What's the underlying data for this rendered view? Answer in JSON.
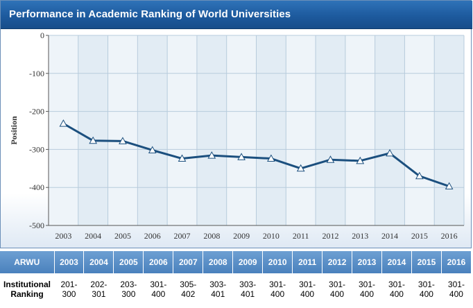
{
  "title": "Performance in Academic Ranking of World Universities",
  "colors": {
    "title_bar": "#1d5a9e",
    "line": "#1b4f7e",
    "marker_fill": "#ffffff",
    "table_header": "#5a8fc8",
    "plot_band_light": "#eef4f9",
    "plot_band_dark": "#e2ecf4"
  },
  "chart_data": {
    "type": "line",
    "title": "Performance in Academic Ranking of World Universities",
    "xlabel": "",
    "ylabel": "Position",
    "x": [
      "2003",
      "2004",
      "2005",
      "2006",
      "2007",
      "2008",
      "2009",
      "2010",
      "2011",
      "2012",
      "2013",
      "2014",
      "2015",
      "2016"
    ],
    "series": [
      {
        "values": [
          -232,
          -277,
          -278,
          -302,
          -324,
          -316,
          -320,
          -324,
          -350,
          -327,
          -330,
          -310,
          -370,
          -397
        ]
      }
    ],
    "ylim": [
      -500,
      0
    ],
    "yticks": [
      0,
      -100,
      -200,
      -300,
      -400,
      -500
    ],
    "ytick_labels": [
      "0",
      "-100",
      "-200",
      "-300",
      "-400",
      "-500"
    ],
    "grid": true,
    "marker": "triangle"
  },
  "table": {
    "header_label": "ARWU",
    "row_label_line1": "Institutional",
    "row_label_line2": "Ranking",
    "years": [
      "2003",
      "2004",
      "2005",
      "2006",
      "2007",
      "2008",
      "2009",
      "2010",
      "2011",
      "2012",
      "2013",
      "2014",
      "2015",
      "2016"
    ],
    "ranks_line1": [
      "201-",
      "202-",
      "203-",
      "301-",
      "305-",
      "303-",
      "303-",
      "301-",
      "301-",
      "301-",
      "301-",
      "301-",
      "301-",
      "301-"
    ],
    "ranks_line2": [
      "300",
      "301",
      "300",
      "400",
      "402",
      "401",
      "401",
      "400",
      "400",
      "400",
      "400",
      "400",
      "400",
      "400"
    ]
  }
}
